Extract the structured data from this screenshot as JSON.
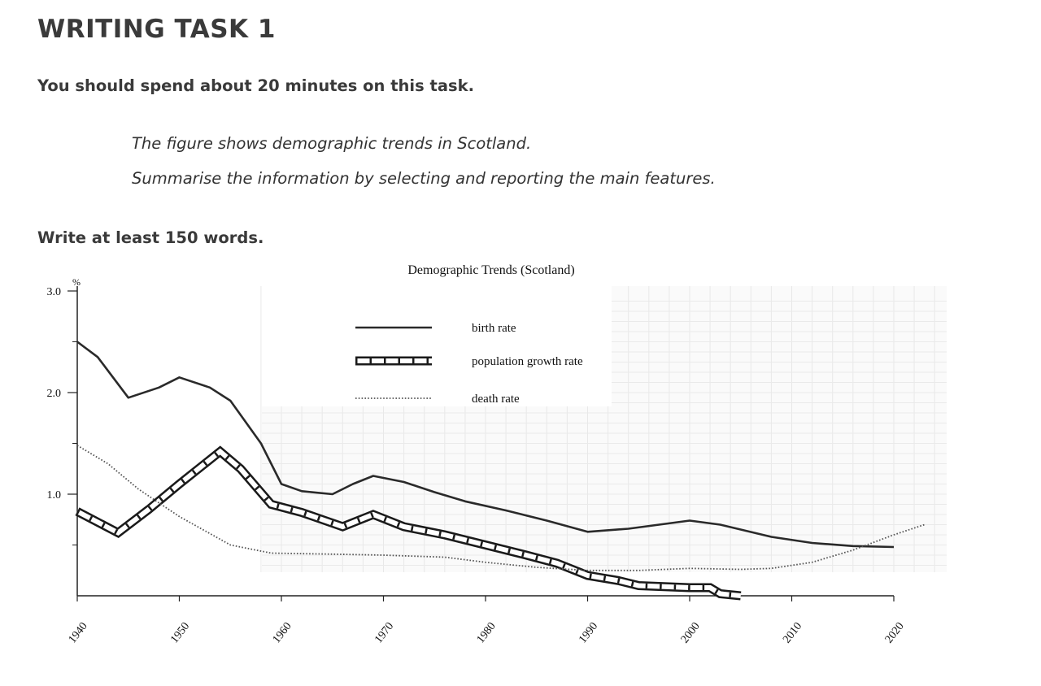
{
  "task": {
    "title": "WRITING TASK 1",
    "instruction": "You should spend about 20 minutes on this task.",
    "prompt_line1": "The figure shows demographic trends in Scotland.",
    "prompt_line2": "Summarise the information by selecting and reporting the main features.",
    "word_count": "Write at least 150 words."
  },
  "chart_data": {
    "type": "line",
    "title": "Demographic Trends (Scotland)",
    "ylabel": "%",
    "xlabel": "",
    "xlim": [
      1940,
      2020
    ],
    "ylim": [
      0,
      3.0
    ],
    "x_ticks": [
      "1940",
      "1950",
      "1960",
      "1970",
      "1980",
      "1990",
      "2000",
      "2010",
      "2020"
    ],
    "y_ticks": [
      "1.0",
      "2.0",
      "3.0"
    ],
    "y_tick_values": [
      1.0,
      2.0,
      3.0
    ],
    "y_minor_ticks": [
      0.5,
      1.5,
      2.5
    ],
    "grid": true,
    "legend_position": "top-center",
    "series": [
      {
        "name": "birth rate",
        "style": "solid",
        "color": "#2a2a2a",
        "points": [
          [
            1940,
            2.5
          ],
          [
            1942,
            2.35
          ],
          [
            1945,
            1.95
          ],
          [
            1948,
            2.05
          ],
          [
            1950,
            2.15
          ],
          [
            1953,
            2.05
          ],
          [
            1955,
            1.92
          ],
          [
            1958,
            1.5
          ],
          [
            1960,
            1.1
          ],
          [
            1962,
            1.03
          ],
          [
            1965,
            1.0
          ],
          [
            1967,
            1.1
          ],
          [
            1969,
            1.18
          ],
          [
            1972,
            1.12
          ],
          [
            1975,
            1.02
          ],
          [
            1978,
            0.93
          ],
          [
            1982,
            0.84
          ],
          [
            1986,
            0.74
          ],
          [
            1990,
            0.63
          ],
          [
            1994,
            0.66
          ],
          [
            1997,
            0.7
          ],
          [
            2000,
            0.74
          ],
          [
            2003,
            0.7
          ],
          [
            2008,
            0.58
          ],
          [
            2012,
            0.52
          ],
          [
            2016,
            0.49
          ],
          [
            2020,
            0.48
          ]
        ]
      },
      {
        "name": "population growth rate",
        "style": "railroad",
        "color": "#1a1a1a",
        "points": [
          [
            1940,
            0.83
          ],
          [
            1944,
            0.62
          ],
          [
            1947,
            0.85
          ],
          [
            1950,
            1.1
          ],
          [
            1954,
            1.42
          ],
          [
            1956,
            1.25
          ],
          [
            1959,
            0.9
          ],
          [
            1962,
            0.82
          ],
          [
            1966,
            0.68
          ],
          [
            1969,
            0.8
          ],
          [
            1972,
            0.68
          ],
          [
            1976,
            0.6
          ],
          [
            1980,
            0.5
          ],
          [
            1984,
            0.4
          ],
          [
            1987,
            0.32
          ],
          [
            1990,
            0.2
          ],
          [
            1993,
            0.15
          ],
          [
            1995,
            0.1
          ],
          [
            2000,
            0.08
          ],
          [
            2002,
            0.08
          ],
          [
            2003,
            0.02
          ],
          [
            2005,
            0.0
          ]
        ]
      },
      {
        "name": "death rate",
        "style": "dotted",
        "color": "#555555",
        "points": [
          [
            1940,
            1.48
          ],
          [
            1943,
            1.3
          ],
          [
            1946,
            1.05
          ],
          [
            1950,
            0.78
          ],
          [
            1955,
            0.5
          ],
          [
            1959,
            0.42
          ],
          [
            1965,
            0.41
          ],
          [
            1970,
            0.4
          ],
          [
            1976,
            0.38
          ],
          [
            1980,
            0.33
          ],
          [
            1985,
            0.28
          ],
          [
            1990,
            0.25
          ],
          [
            1995,
            0.25
          ],
          [
            2000,
            0.27
          ],
          [
            2005,
            0.26
          ],
          [
            2008,
            0.27
          ],
          [
            2012,
            0.33
          ],
          [
            2016,
            0.45
          ],
          [
            2020,
            0.6
          ],
          [
            2023,
            0.7
          ]
        ]
      }
    ]
  }
}
